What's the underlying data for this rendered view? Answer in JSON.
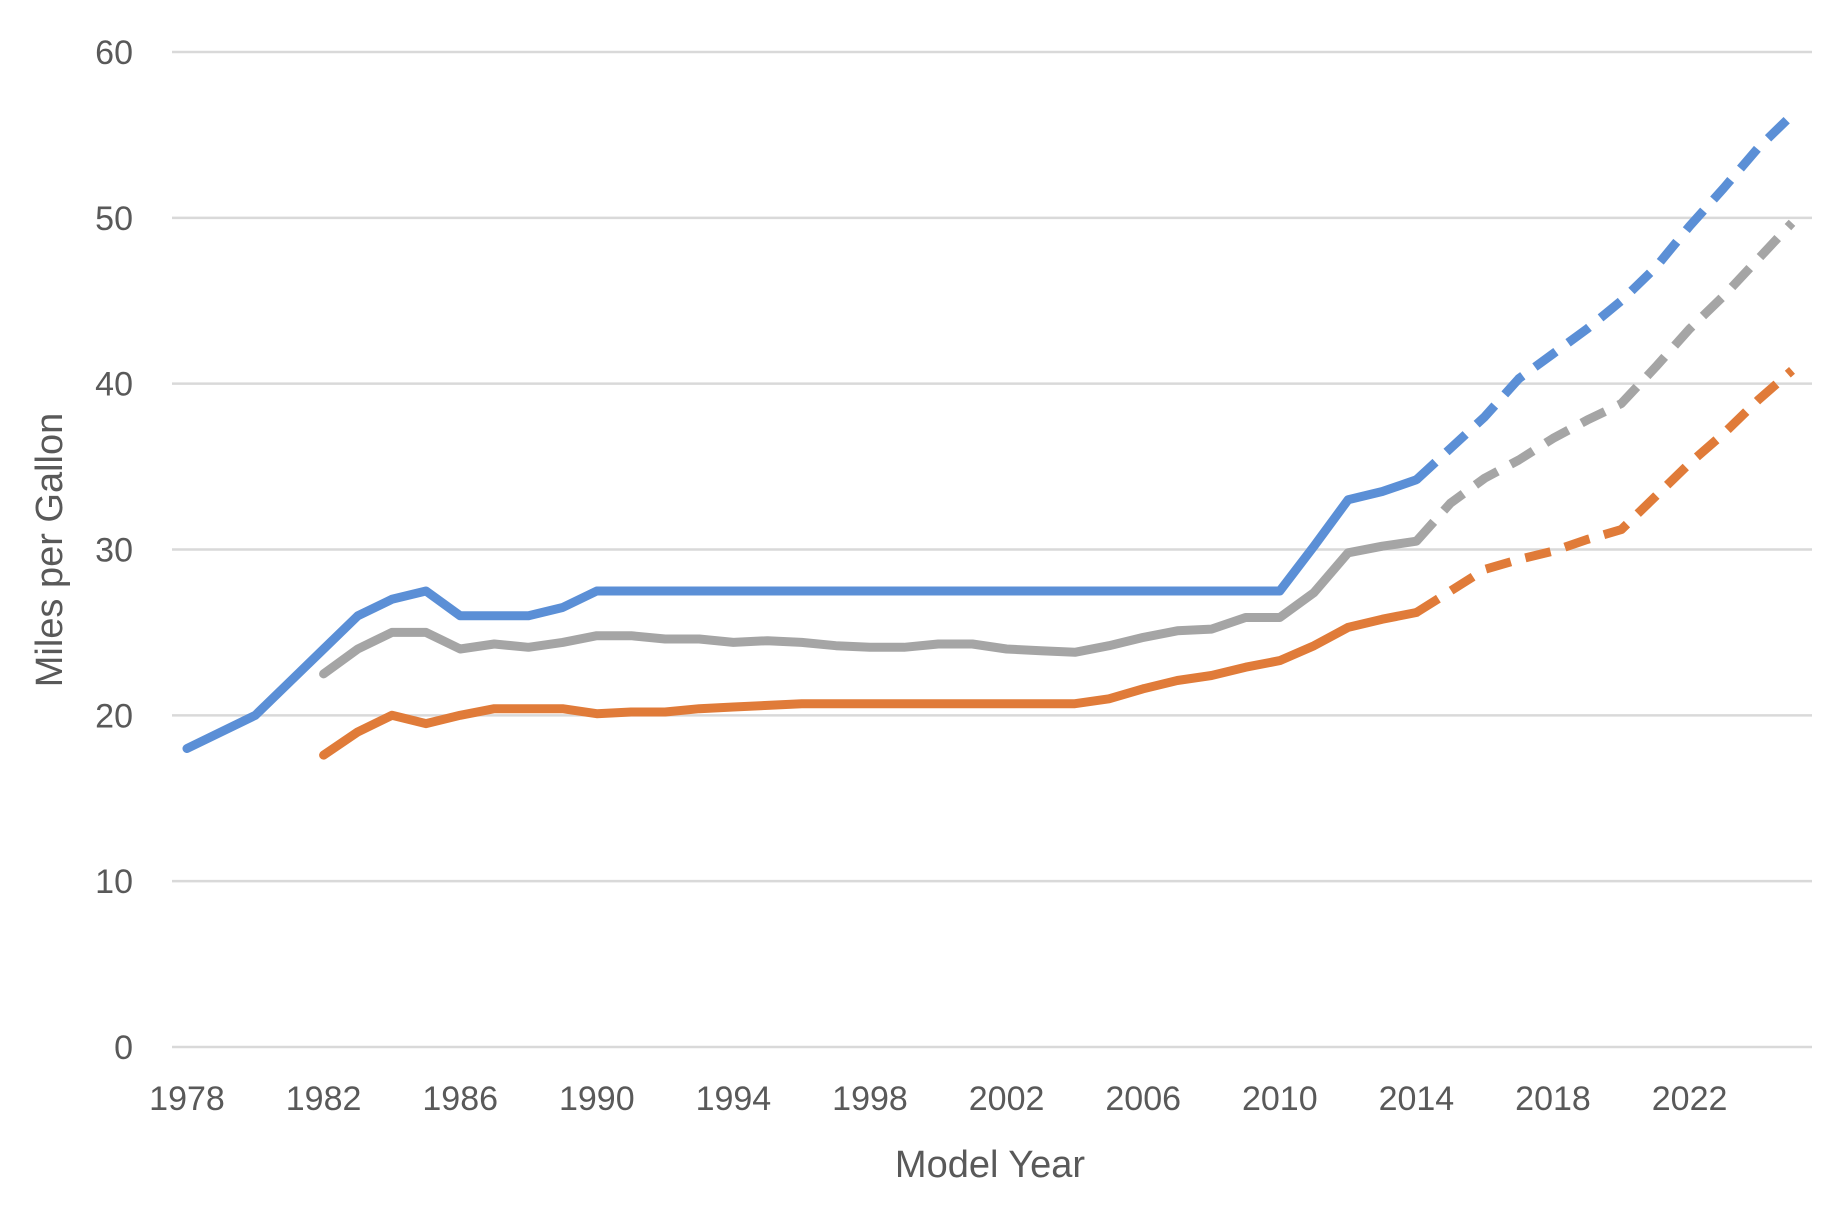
{
  "chart_data": {
    "type": "line",
    "title": "",
    "xlabel": "Model Year",
    "ylabel": "Miles per Gallon",
    "xlim": [
      1978,
      2025
    ],
    "ylim": [
      0,
      60
    ],
    "x_ticks": [
      "1978",
      "1982",
      "1986",
      "1990",
      "1994",
      "1998",
      "2002",
      "2006",
      "2010",
      "2014",
      "2018",
      "2022"
    ],
    "y_ticks": [
      "0",
      "10",
      "20",
      "30",
      "40",
      "50",
      "60"
    ],
    "grid": "horizontal",
    "legend": "none",
    "series": [
      {
        "color": "#5b8fd6",
        "actual": {
          "x": [
            1978,
            1980,
            1981,
            1982,
            1983,
            1984,
            1985,
            1986,
            1987,
            1988,
            1989,
            1990,
            2010,
            2011,
            2012,
            2013,
            2014
          ],
          "y": [
            18,
            20,
            22,
            24,
            26,
            27,
            27.5,
            26,
            26,
            26,
            26.5,
            27.5,
            27.5,
            30.2,
            33,
            33.5,
            34.2
          ]
        },
        "projected": {
          "x": [
            2014,
            2016,
            2017,
            2018,
            2019,
            2020,
            2021,
            2022,
            2023,
            2024,
            2025
          ],
          "y": [
            34.2,
            38,
            40.3,
            41.8,
            43.3,
            45,
            47,
            49.5,
            51.8,
            54.2,
            56.2
          ]
        }
      },
      {
        "color": "#a5a5a5",
        "actual": {
          "x": [
            1982,
            1983,
            1984,
            1985,
            1986,
            1987,
            1988,
            1989,
            1990,
            1991,
            1992,
            1993,
            1994,
            1995,
            1996,
            1997,
            1998,
            1999,
            2000,
            2001,
            2002,
            2003,
            2004,
            2005,
            2006,
            2007,
            2008,
            2009,
            2010,
            2011,
            2012,
            2013,
            2014
          ],
          "y": [
            22.5,
            24,
            25,
            25,
            24,
            24.3,
            24.1,
            24.4,
            24.8,
            24.8,
            24.6,
            24.6,
            24.4,
            24.5,
            24.4,
            24.2,
            24.1,
            24.1,
            24.3,
            24.3,
            24,
            23.9,
            23.8,
            24.2,
            24.7,
            25.1,
            25.2,
            25.9,
            25.9,
            27.4,
            29.8,
            30.2,
            30.5
          ]
        },
        "projected": {
          "x": [
            2014,
            2015,
            2016,
            2017,
            2018,
            2019,
            2020,
            2021,
            2022,
            2023,
            2024,
            2025
          ],
          "y": [
            30.5,
            32.8,
            34.3,
            35.4,
            36.7,
            37.8,
            38.8,
            41,
            43.3,
            45.3,
            47.5,
            49.7
          ]
        }
      },
      {
        "color": "#e07b39",
        "actual": {
          "x": [
            1982,
            1983,
            1984,
            1985,
            1986,
            1987,
            1988,
            1989,
            1990,
            1991,
            1992,
            1993,
            1994,
            1995,
            1996,
            1997,
            1998,
            1999,
            2000,
            2001,
            2002,
            2003,
            2004,
            2005,
            2006,
            2007,
            2008,
            2009,
            2010,
            2011,
            2012,
            2013,
            2014
          ],
          "y": [
            17.6,
            19,
            20,
            19.5,
            20,
            20.4,
            20.4,
            20.4,
            20.1,
            20.2,
            20.2,
            20.4,
            20.5,
            20.6,
            20.7,
            20.7,
            20.7,
            20.7,
            20.7,
            20.7,
            20.7,
            20.7,
            20.7,
            21,
            21.6,
            22.1,
            22.4,
            22.9,
            23.3,
            24.2,
            25.3,
            25.8,
            26.2
          ]
        },
        "projected": {
          "x": [
            2014,
            2015,
            2016,
            2017,
            2018,
            2019,
            2020,
            2021,
            2022,
            2023,
            2024,
            2025
          ],
          "y": [
            26.2,
            27.5,
            28.8,
            29.4,
            29.9,
            30.6,
            31.2,
            33.2,
            35.2,
            37,
            39,
            40.8
          ]
        }
      }
    ]
  }
}
